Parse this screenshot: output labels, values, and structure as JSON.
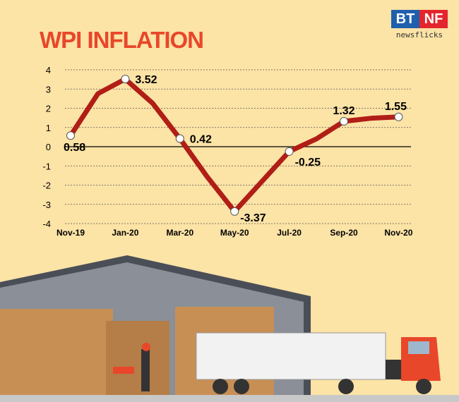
{
  "title": "WPI INFLATION",
  "logo": {
    "left": "BT",
    "right": "NF",
    "sub": "newsflicks"
  },
  "chart_data": {
    "type": "line",
    "title": "WPI INFLATION",
    "x": [
      "Nov-19",
      "Dec-19",
      "Jan-20",
      "Feb-20",
      "Mar-20",
      "Apr-20",
      "May-20",
      "Jun-20",
      "Jul-20",
      "Aug-20",
      "Sep-20",
      "Oct-20",
      "Nov-20"
    ],
    "values": [
      0.58,
      2.76,
      3.52,
      2.26,
      0.42,
      -1.57,
      -3.37,
      -1.81,
      -0.25,
      0.41,
      1.32,
      1.48,
      1.55
    ],
    "labeled_points": {
      "Nov-19": "0.58",
      "Jan-20": "3.52",
      "Mar-20": "0.42",
      "May-20": "-3.37",
      "Jul-20": "-0.25",
      "Sep-20": "1.32",
      "Nov-20": "1.55"
    },
    "tick_labels_x": [
      "Nov-19",
      "Jan-20",
      "Mar-20",
      "May-20",
      "Jul-20",
      "Sep-20",
      "Nov-20"
    ],
    "tick_labels_y": [
      "4",
      "3",
      "2",
      "1",
      "0",
      "-1",
      "-2",
      "-3",
      "-4"
    ],
    "ylim": [
      -4,
      4
    ],
    "grid": true,
    "line_color": "#b01e16",
    "title_color": "#e8472a"
  }
}
